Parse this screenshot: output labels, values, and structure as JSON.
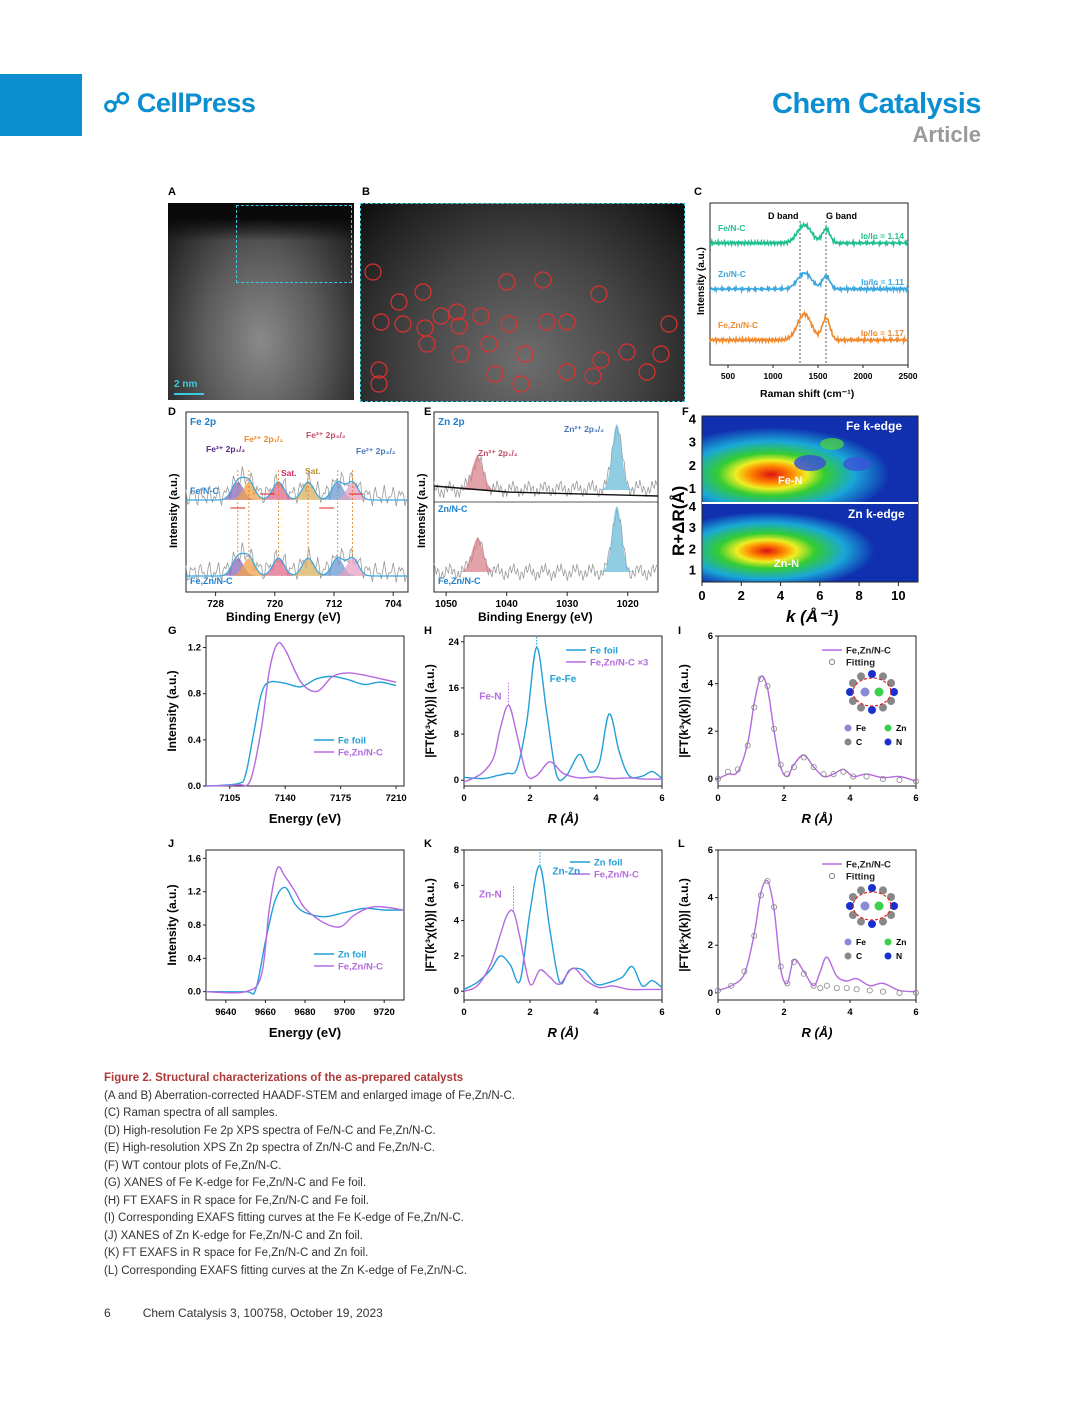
{
  "header": {
    "publisher": "CellPress",
    "journal": "Chem Catalysis",
    "section": "Article"
  },
  "panels": {
    "A": {
      "label": "A",
      "scalebar": "2 nm"
    },
    "B": {
      "label": "B"
    },
    "C": {
      "label": "C",
      "xlabel": "Raman shift (cm⁻¹)",
      "ylabel": "Intensity (a.u.)",
      "dband": "D band",
      "gband": "G band",
      "series": [
        {
          "name": "Fe/N-C",
          "ratio": "Iᴅ/Iɢ = 1.14",
          "color": "#1fbf8f"
        },
        {
          "name": "Zn/N-C",
          "ratio": "Iᴅ/Iɢ = 1.11",
          "color": "#3aa7de"
        },
        {
          "name": "Fe,Zn/N-C",
          "ratio": "Iᴅ/Iɢ = 1.17",
          "color": "#f08a2c"
        }
      ],
      "xticks": [
        "500",
        "1000",
        "1500",
        "2000",
        "2500"
      ]
    },
    "D": {
      "label": "D",
      "title": "Fe 2p",
      "xlabel": "Binding Energy (eV)",
      "ylabel": "Intensity (a.u.)",
      "s1": "Fe/N-C",
      "s2": "Fe,Zn/N-C",
      "peaks": [
        "Fe³⁺ 2p₁/₂",
        "Fe²⁺ 2p₁/₂",
        "Fe³⁺ 2p₃/₂",
        "Fe²⁺ 2p₃/₂",
        "Sat.",
        "Sat."
      ],
      "xticks": [
        "728",
        "720",
        "712",
        "704"
      ]
    },
    "E": {
      "label": "E",
      "title": "Zn 2p",
      "xlabel": "Binding Energy (eV)",
      "ylabel": "Intensity (a.u.)",
      "s1": "Zn/N-C",
      "s2": "Fe,Zn/N-C",
      "peaks": [
        "Zn²⁺ 2p₁/₂",
        "Zn²⁺ 2p₃/₂"
      ],
      "xticks": [
        "1050",
        "1040",
        "1030",
        "1020"
      ]
    },
    "F": {
      "label": "F",
      "top": "Fe k-edge",
      "bottom": "Zn k-edge",
      "peak1": "Fe-N",
      "peak2": "Zn-N",
      "xlabel": "k (Å⁻¹)",
      "ylabel": "R+ΔR(Å)",
      "xticks": [
        "0",
        "2",
        "4",
        "6",
        "8",
        "10"
      ],
      "yticks": [
        "1",
        "2",
        "3",
        "4"
      ]
    },
    "G": {
      "label": "G",
      "xlabel": "Energy (eV)",
      "ylabel": "Intensity (a.u.)",
      "s1": "Fe foil",
      "s2": "Fe,Zn/N-C",
      "xticks": [
        "7105",
        "7140",
        "7175",
        "7210"
      ],
      "yticks": [
        "0.0",
        "0.4",
        "0.8",
        "1.2"
      ]
    },
    "H": {
      "label": "H",
      "xlabel": "R (Å)",
      "ylabel": "|FT(k³χ(k))| (a.u.)",
      "s1": "Fe foil",
      "s2": "Fe,Zn/N-C ×3",
      "a1": "Fe-N",
      "a2": "Fe-Fe",
      "xticks": [
        "0",
        "2",
        "4",
        "6"
      ],
      "yticks": [
        "0",
        "8",
        "16",
        "24"
      ]
    },
    "I": {
      "label": "I",
      "xlabel": "R (Å)",
      "ylabel": "|FT(k³χ(k))| (a.u.)",
      "s1": "Fe,Zn/N-C",
      "s2": "Fitting",
      "atoms": [
        "Fe",
        "Zn",
        "C",
        "N"
      ],
      "xticks": [
        "0",
        "2",
        "4",
        "6"
      ],
      "yticks": [
        "0",
        "2",
        "4",
        "6"
      ]
    },
    "J": {
      "label": "J",
      "xlabel": "Energy (eV)",
      "ylabel": "Intensity (a.u.)",
      "s1": "Zn foil",
      "s2": "Fe,Zn/N-C",
      "xticks": [
        "9640",
        "9660",
        "9680",
        "9700",
        "9720"
      ],
      "yticks": [
        "0.0",
        "0.4",
        "0.8",
        "1.2",
        "1.6"
      ]
    },
    "K": {
      "label": "K",
      "xlabel": "R (Å)",
      "ylabel": "|FT(k³χ(k))| (a.u.)",
      "s1": "Zn foil",
      "s2": "Fe,Zn/N-C",
      "a1": "Zn-N",
      "a2": "Zn-Zn",
      "xticks": [
        "0",
        "2",
        "4",
        "6"
      ],
      "yticks": [
        "0",
        "2",
        "4",
        "6",
        "8"
      ]
    },
    "L": {
      "label": "L",
      "xlabel": "R (Å)",
      "ylabel": "|FT(k³χ(k))| (a.u.)",
      "s1": "Fe,Zn/N-C",
      "s2": "Fitting",
      "atoms": [
        "Fe",
        "Zn",
        "C",
        "N"
      ],
      "xticks": [
        "0",
        "2",
        "4",
        "6"
      ],
      "yticks": [
        "0",
        "2",
        "4",
        "6"
      ]
    }
  },
  "caption": {
    "title": "Figure 2.  Structural characterizations of the as-prepared catalysts",
    "lines": [
      "(A and B) Aberration-corrected HAADF-STEM and enlarged image of Fe,Zn/N-C.",
      "(C) Raman spectra of all samples.",
      "(D) High-resolution Fe 2p XPS spectra of Fe/N-C and Fe,Zn/N-C.",
      "(E) High-resolution XPS Zn 2p spectra of Zn/N-C and Fe,Zn/N-C.",
      "(F) WT contour plots of Fe,Zn/N-C.",
      "(G) XANES of Fe K-edge for Fe,Zn/N-C and Fe foil.",
      "(H) FT EXAFS in R space for Fe,Zn/N-C and Fe foil.",
      "(I) Corresponding EXAFS fitting curves at the Fe K-edge of Fe,Zn/N-C.",
      "(J) XANES of Zn K-edge for Fe,Zn/N-C and Zn foil.",
      "(K) FT EXAFS in R space for Fe,Zn/N-C and Zn foil.",
      "(L) Corresponding EXAFS fitting curves at the Zn K-edge of Fe,Zn/N-C."
    ]
  },
  "footer": {
    "page": "6",
    "citation": "Chem Catalysis 3, 100758, October 19, 2023"
  },
  "chart_data": [
    {
      "panel": "C",
      "type": "line",
      "xlabel": "Raman shift (cm⁻¹)",
      "ylabel": "Intensity (a.u.)",
      "xlim": [
        300,
        2500
      ],
      "series": [
        {
          "name": "Fe/N-C",
          "peaks": [
            1350,
            1590
          ],
          "ID_IG": 1.14
        },
        {
          "name": "Zn/N-C",
          "peaks": [
            1350,
            1590
          ],
          "ID_IG": 1.11
        },
        {
          "name": "Fe,Zn/N-C",
          "peaks": [
            1350,
            1590
          ],
          "ID_IG": 1.17
        }
      ]
    },
    {
      "panel": "G",
      "type": "line",
      "xlabel": "Energy (eV)",
      "ylabel": "Intensity (a.u.)",
      "xlim": [
        7090,
        7215
      ],
      "ylim": [
        0,
        1.3
      ],
      "series": [
        {
          "name": "Fe foil",
          "x": [
            7090,
            7110,
            7115,
            7120,
            7125,
            7130,
            7140,
            7150,
            7160,
            7170,
            7180,
            7190,
            7200,
            7210
          ],
          "y": [
            0.0,
            0.02,
            0.1,
            0.45,
            0.8,
            0.9,
            0.89,
            0.86,
            0.93,
            0.95,
            0.92,
            0.88,
            0.9,
            0.87
          ]
        },
        {
          "name": "Fe,Zn/N-C",
          "x": [
            7090,
            7110,
            7118,
            7125,
            7130,
            7135,
            7140,
            7150,
            7160,
            7170,
            7180,
            7190,
            7200,
            7210
          ],
          "y": [
            0.0,
            0.01,
            0.05,
            0.5,
            1.0,
            1.23,
            1.18,
            0.9,
            0.82,
            0.95,
            0.98,
            0.96,
            0.93,
            0.9
          ]
        }
      ]
    },
    {
      "panel": "H",
      "type": "line",
      "xlabel": "R (Å)",
      "ylabel": "|FT(k³χ(k))| (a.u.)",
      "xlim": [
        0,
        6
      ],
      "ylim": [
        -1,
        25
      ],
      "series": [
        {
          "name": "Fe foil",
          "x": [
            0,
            0.6,
            1.0,
            1.3,
            1.6,
            1.9,
            2.2,
            2.5,
            2.8,
            3.1,
            3.5,
            3.8,
            4.1,
            4.4,
            4.7,
            5.0,
            5.4,
            5.7,
            6.0
          ],
          "y": [
            0.5,
            0.3,
            0.8,
            1.2,
            2.0,
            10,
            23,
            12,
            1,
            0.8,
            4.5,
            1.5,
            3,
            11.5,
            5,
            0.8,
            0.7,
            1.5,
            0.3
          ]
        },
        {
          "name": "Fe,Zn/N-C ×3",
          "x": [
            0,
            0.3,
            0.6,
            0.9,
            1.1,
            1.35,
            1.6,
            1.9,
            2.2,
            2.6,
            3.0,
            3.5,
            4.0,
            4.5,
            5.0,
            5.5,
            6.0
          ],
          "y": [
            -0.3,
            0.4,
            1.5,
            4,
            9,
            13,
            8,
            1,
            0.8,
            3.2,
            1.2,
            0.4,
            0.6,
            0.3,
            0.4,
            0.2,
            0.2
          ]
        }
      ]
    },
    {
      "panel": "I",
      "type": "line",
      "xlabel": "R (Å)",
      "ylabel": "|FT(k³χ(k))| (a.u.)",
      "xlim": [
        0,
        6
      ],
      "ylim": [
        -0.3,
        6
      ],
      "series": [
        {
          "name": "Fe,Zn/N-C",
          "x": [
            0,
            0.3,
            0.6,
            0.9,
            1.1,
            1.3,
            1.5,
            1.7,
            1.9,
            2.1,
            2.3,
            2.6,
            2.9,
            3.2,
            3.5,
            3.8,
            4.1,
            4.5,
            5.0,
            5.5,
            6.0
          ],
          "y": [
            0.0,
            0.2,
            0.3,
            1.5,
            3.2,
            4.3,
            3.8,
            2.0,
            0.5,
            0.1,
            0.6,
            1.0,
            0.5,
            0.1,
            0.2,
            0.4,
            0.1,
            0.2,
            0.05,
            0.1,
            -0.1
          ]
        },
        {
          "name": "Fitting",
          "x": [
            0,
            0.3,
            0.6,
            0.9,
            1.1,
            1.3,
            1.5,
            1.7,
            1.9,
            2.1,
            2.3,
            2.6,
            2.9,
            3.2,
            3.5,
            3.8,
            4.1,
            4.5,
            5.0,
            5.5,
            6.0
          ],
          "y": [
            0.0,
            0.3,
            0.4,
            1.4,
            3.0,
            4.2,
            3.9,
            2.1,
            0.6,
            0.2,
            0.5,
            0.9,
            0.5,
            0.2,
            0.2,
            0.3,
            0.1,
            0.1,
            0.0,
            -0.05,
            -0.1
          ]
        }
      ]
    },
    {
      "panel": "J",
      "type": "line",
      "xlabel": "Energy (eV)",
      "ylabel": "Intensity (a.u.)",
      "xlim": [
        9630,
        9730
      ],
      "ylim": [
        -0.1,
        1.7
      ],
      "series": [
        {
          "name": "Zn foil",
          "x": [
            9630,
            9650,
            9655,
            9660,
            9665,
            9670,
            9675,
            9680,
            9690,
            9700,
            9710,
            9720,
            9730
          ],
          "y": [
            0.0,
            0.0,
            0.02,
            0.6,
            1.1,
            1.25,
            1.05,
            0.95,
            0.9,
            0.95,
            1.0,
            0.98,
            0.98
          ]
        },
        {
          "name": "Fe,Zn/N-C",
          "x": [
            9630,
            9650,
            9658,
            9662,
            9666,
            9670,
            9675,
            9680,
            9690,
            9698,
            9705,
            9715,
            9730
          ],
          "y": [
            0.0,
            0.0,
            0.2,
            1.0,
            1.48,
            1.38,
            1.2,
            1.0,
            0.82,
            0.78,
            0.92,
            1.02,
            0.98
          ]
        }
      ]
    },
    {
      "panel": "K",
      "type": "line",
      "xlabel": "R (Å)",
      "ylabel": "|FT(k³χ(k))| (a.u.)",
      "xlim": [
        0,
        6
      ],
      "ylim": [
        -0.5,
        8
      ],
      "series": [
        {
          "name": "Zn foil",
          "x": [
            0,
            0.4,
            0.8,
            1.1,
            1.4,
            1.7,
            2.0,
            2.3,
            2.6,
            2.9,
            3.2,
            3.6,
            4.0,
            4.4,
            4.8,
            5.1,
            5.4,
            5.7,
            6.0
          ],
          "y": [
            0.1,
            0.5,
            1.2,
            2.0,
            1.5,
            0.6,
            4.5,
            7.1,
            3.5,
            0.5,
            1.2,
            1.2,
            0.4,
            0.5,
            0.8,
            1.4,
            0.3,
            0.6,
            0.2
          ]
        },
        {
          "name": "Fe,Zn/N-C",
          "x": [
            0,
            0.4,
            0.8,
            1.1,
            1.3,
            1.5,
            1.7,
            2.0,
            2.3,
            2.6,
            2.9,
            3.3,
            3.7,
            4.1,
            4.5,
            5.0,
            5.5,
            6.0
          ],
          "y": [
            0.0,
            0.3,
            1.5,
            3.2,
            4.3,
            4.5,
            3.0,
            0.4,
            1.2,
            0.8,
            0.4,
            1.3,
            0.6,
            0.2,
            0.3,
            0.1,
            0.1,
            0.1
          ]
        }
      ]
    },
    {
      "panel": "L",
      "type": "line",
      "xlabel": "R (Å)",
      "ylabel": "|FT(k³χ(k))| (a.u.)",
      "xlim": [
        0,
        6
      ],
      "ylim": [
        -0.3,
        6
      ],
      "series": [
        {
          "name": "Fe,Zn/N-C",
          "x": [
            0,
            0.4,
            0.8,
            1.1,
            1.3,
            1.5,
            1.7,
            1.9,
            2.1,
            2.3,
            2.6,
            2.9,
            3.1,
            3.3,
            3.6,
            3.9,
            4.2,
            4.6,
            5.0,
            5.5,
            6.0
          ],
          "y": [
            0.1,
            0.3,
            0.8,
            2.5,
            4.2,
            4.7,
            3.5,
            1.0,
            0.4,
            1.4,
            0.9,
            0.3,
            0.9,
            1.5,
            0.7,
            0.5,
            0.6,
            0.3,
            0.4,
            0.1,
            0.05
          ]
        },
        {
          "name": "Fitting",
          "x": [
            0,
            0.4,
            0.8,
            1.1,
            1.3,
            1.5,
            1.7,
            1.9,
            2.1,
            2.3,
            2.6,
            2.9,
            3.1,
            3.3,
            3.6,
            3.9,
            4.2,
            4.6,
            5.0,
            5.5,
            6.0
          ],
          "y": [
            0.1,
            0.3,
            0.9,
            2.4,
            4.1,
            4.7,
            3.6,
            1.1,
            0.4,
            1.3,
            0.8,
            0.3,
            0.2,
            0.3,
            0.2,
            0.2,
            0.15,
            0.1,
            0.05,
            0.0,
            0.0
          ]
        }
      ]
    }
  ]
}
